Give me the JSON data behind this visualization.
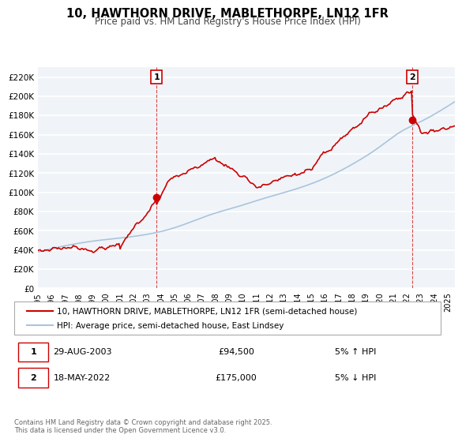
{
  "title": "10, HAWTHORN DRIVE, MABLETHORPE, LN12 1FR",
  "subtitle": "Price paid vs. HM Land Registry's House Price Index (HPI)",
  "xlabel": "",
  "ylabel": "",
  "ylim": [
    0,
    230000
  ],
  "yticks": [
    0,
    20000,
    40000,
    60000,
    80000,
    100000,
    120000,
    140000,
    160000,
    180000,
    200000,
    220000
  ],
  "ytick_labels": [
    "£0",
    "£20K",
    "£40K",
    "£60K",
    "£80K",
    "£100K",
    "£120K",
    "£140K",
    "£160K",
    "£180K",
    "£200K",
    "£220K"
  ],
  "xlim_start": 1995.0,
  "xlim_end": 2025.5,
  "xticks": [
    1995,
    1996,
    1997,
    1998,
    1999,
    2000,
    2001,
    2002,
    2003,
    2004,
    2005,
    2006,
    2007,
    2008,
    2009,
    2010,
    2011,
    2012,
    2013,
    2014,
    2015,
    2016,
    2017,
    2018,
    2019,
    2020,
    2021,
    2022,
    2023,
    2024,
    2025
  ],
  "property_color": "#cc0000",
  "hpi_color": "#aac4dd",
  "background_color": "#f0f4f8",
  "plot_bg_color": "#f0f4f8",
  "grid_color": "#ffffff",
  "vline1_x": 2003.67,
  "vline2_x": 2022.38,
  "marker1_x": 2003.67,
  "marker1_y": 94500,
  "marker2_x": 2022.38,
  "marker2_y": 175000,
  "legend_label_property": "10, HAWTHORN DRIVE, MABLETHORPE, LN12 1FR (semi-detached house)",
  "legend_label_hpi": "HPI: Average price, semi-detached house, East Lindsey",
  "annotation1_label": "1",
  "annotation2_label": "2",
  "note1_num": "1",
  "note1_date": "29-AUG-2003",
  "note1_price": "£94,500",
  "note1_hpi": "5% ↑ HPI",
  "note2_num": "2",
  "note2_date": "18-MAY-2022",
  "note2_price": "£175,000",
  "note2_hpi": "5% ↓ HPI",
  "footer": "Contains HM Land Registry data © Crown copyright and database right 2025.\nThis data is licensed under the Open Government Licence v3.0."
}
